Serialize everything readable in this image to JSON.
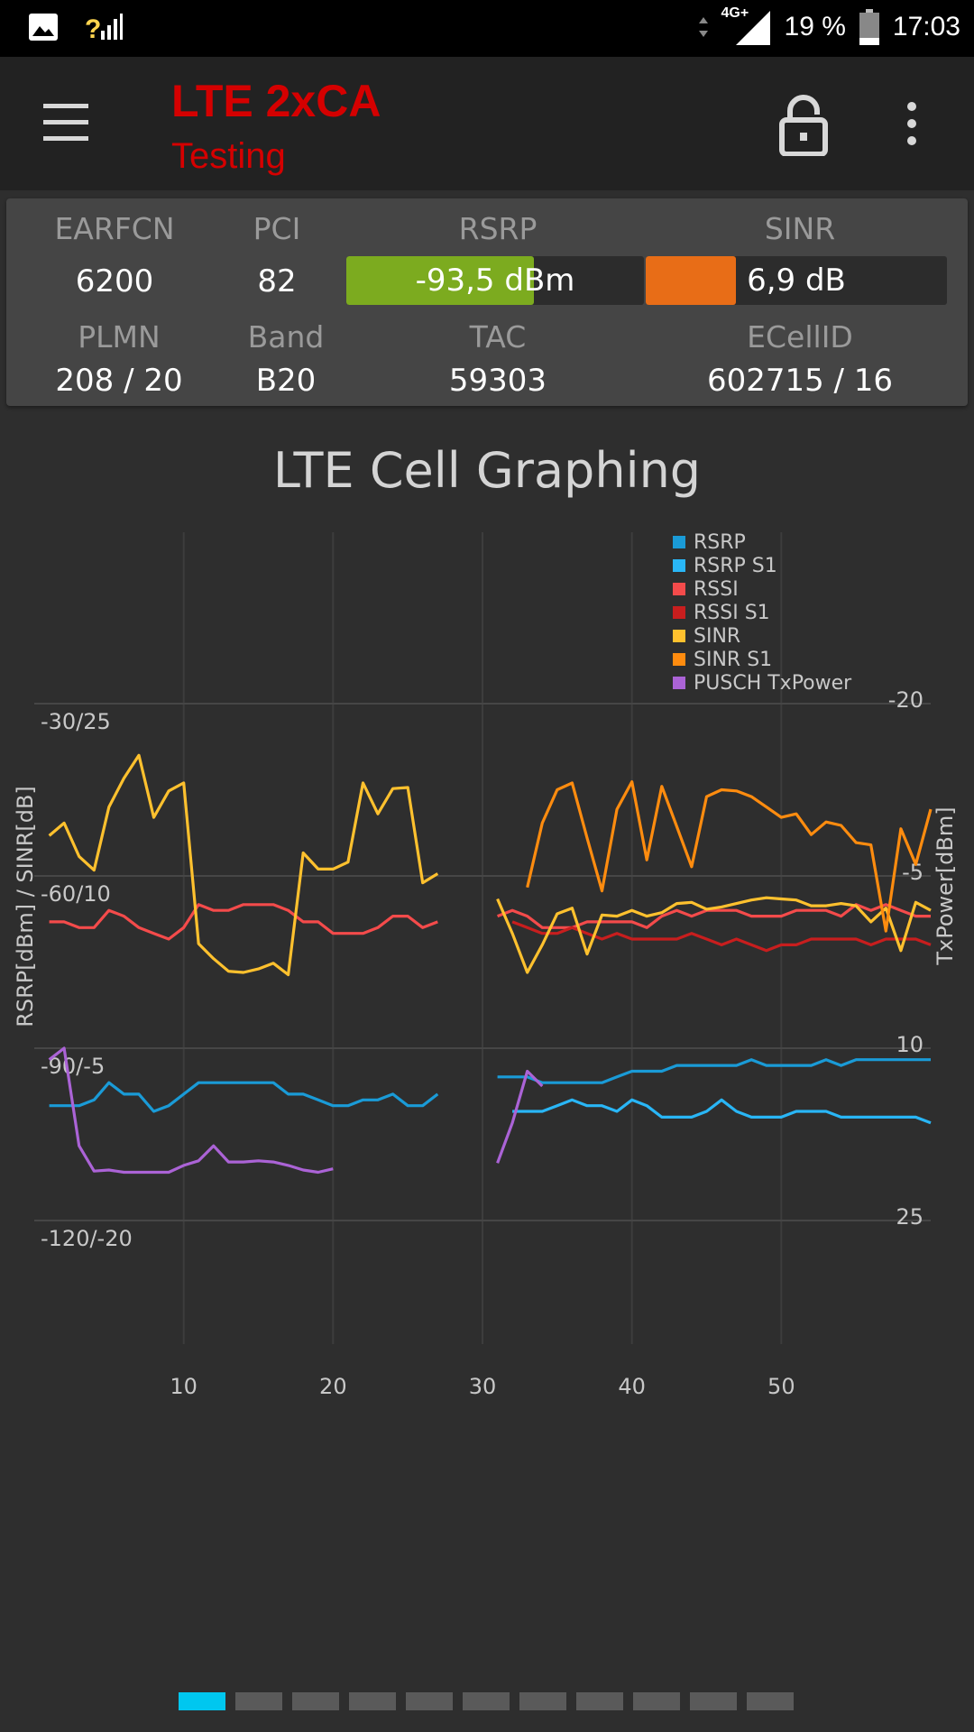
{
  "status_bar": {
    "network": "4G+",
    "battery": "19 %",
    "time": "17:03"
  },
  "app_bar": {
    "title": "LTE 2xCA",
    "subtitle": "Testing"
  },
  "cell_info": {
    "earfcn_label": "EARFCN",
    "earfcn": "6200",
    "pci_label": "PCI",
    "pci": "82",
    "rsrp_label": "RSRP",
    "rsrp": "-93,5 dBm",
    "rsrp_fill_fraction": 0.63,
    "sinr_label": "SINR",
    "sinr": "6,9 dB",
    "sinr_fill_fraction": 0.3,
    "plmn_label": "PLMN",
    "plmn": "208 / 20",
    "band_label": "Band",
    "band": "B20",
    "tac_label": "TAC",
    "tac": "59303",
    "ecellid_label": "ECellID",
    "ecellid": "602715 / 16",
    "rsrp_bar_color": "#7cab1f",
    "sinr_bar_color": "#e86d17"
  },
  "chart_data": {
    "type": "line",
    "title": "LTE Cell Graphing",
    "ylabel": "RSRP[dBm] / SINR[dB]",
    "y2label": "TxPower[dBm]",
    "ylim_rsrp": [
      -150,
      -30
    ],
    "ylim_sinr": [
      -35,
      25
    ],
    "y2lim_reversed": [
      -20,
      40
    ],
    "xlim": [
      0,
      60
    ],
    "x_ticks": [
      "10",
      "20",
      "30",
      "40",
      "50"
    ],
    "x_tick_values": [
      10,
      20,
      30,
      40,
      50
    ],
    "y_ticks": [
      "-30/25",
      "-60/10",
      "-90/-5",
      "-120/-20"
    ],
    "y_tick_rsrp_values": [
      -30,
      -60,
      -90,
      -120
    ],
    "y2_ticks": [
      "-20",
      "-5",
      "10",
      "25"
    ],
    "y2_tick_values": [
      -20,
      -5,
      10,
      25
    ],
    "grid": true,
    "legend_position": "top-right",
    "series": [
      {
        "name": "RSRP",
        "color": "#1a9bd7",
        "scale": "rsrp",
        "segments": [
          {
            "x": [
              1,
              2,
              3,
              4,
              5,
              6,
              7,
              8,
              9,
              10,
              11,
              12,
              13,
              14,
              15,
              16,
              17,
              18,
              19,
              20,
              21,
              22,
              23,
              24,
              25,
              26,
              27
            ],
            "y": [
              -100,
              -100,
              -100,
              -99,
              -96,
              -98,
              -98,
              -101,
              -100,
              -98,
              -96,
              -96,
              -96,
              -96,
              -96,
              -96,
              -98,
              -98,
              -99,
              -100,
              -100,
              -99,
              -99,
              -98,
              -100,
              -100,
              -98
            ]
          },
          {
            "x": [
              31,
              32,
              33,
              34,
              35,
              36,
              37,
              38,
              39,
              40,
              41,
              42,
              43,
              44,
              45,
              46,
              47,
              48,
              49,
              50,
              51,
              52,
              53,
              54,
              55,
              56,
              57,
              58,
              59,
              60
            ],
            "y": [
              -95,
              -95,
              -95,
              -96,
              -96,
              -96,
              -96,
              -96,
              -95,
              -94,
              -94,
              -94,
              -93,
              -93,
              -93,
              -93,
              -93,
              -92,
              -93,
              -93,
              -93,
              -93,
              -92,
              -93,
              -92,
              -92,
              -92,
              -92,
              -92,
              -92
            ]
          }
        ]
      },
      {
        "name": "RSRP S1",
        "color": "#29b6f6",
        "scale": "rsrp",
        "segments": [
          {
            "x": [
              32,
              33,
              34,
              35,
              36,
              37,
              38,
              39,
              40,
              41,
              42,
              43,
              44,
              45,
              46,
              47,
              48,
              49,
              50,
              51,
              52,
              53,
              54,
              55,
              56,
              57,
              58,
              59,
              60
            ],
            "y": [
              -101,
              -101,
              -101,
              -100,
              -99,
              -100,
              -100,
              -101,
              -99,
              -100,
              -102,
              -102,
              -102,
              -101,
              -99,
              -101,
              -102,
              -102,
              -102,
              -101,
              -101,
              -101,
              -102,
              -102,
              -102,
              -102,
              -102,
              -102,
              -103
            ]
          }
        ]
      },
      {
        "name": "RSSI",
        "color": "#f44b4b",
        "scale": "rsrp",
        "segments": [
          {
            "x": [
              1,
              2,
              3,
              4,
              5,
              6,
              7,
              8,
              9,
              10,
              11,
              12,
              13,
              14,
              15,
              16,
              17,
              18,
              19,
              20,
              21,
              22,
              23,
              24,
              25,
              26,
              27
            ],
            "y": [
              -68,
              -68,
              -69,
              -69,
              -66,
              -67,
              -69,
              -70,
              -71,
              -69,
              -65,
              -66,
              -66,
              -65,
              -65,
              -65,
              -66,
              -68,
              -68,
              -70,
              -70,
              -70,
              -69,
              -67,
              -67,
              -69,
              -68
            ]
          },
          {
            "x": [
              31,
              32,
              33,
              34,
              35,
              36,
              37,
              38,
              39,
              40,
              41,
              42,
              43,
              44,
              45,
              46,
              47,
              48,
              49,
              50,
              51,
              52,
              53,
              54,
              55,
              56,
              57,
              58,
              59,
              60
            ],
            "y": [
              -67,
              -66,
              -67,
              -69,
              -69,
              -69,
              -68,
              -68,
              -68,
              -68,
              -69,
              -67,
              -66,
              -67,
              -66,
              -66,
              -66,
              -67,
              -67,
              -67,
              -66,
              -66,
              -66,
              -67,
              -65,
              -66,
              -65,
              -66,
              -67,
              -67
            ]
          }
        ]
      },
      {
        "name": "RSSI S1",
        "color": "#c81e1e",
        "scale": "rsrp",
        "segments": [
          {
            "x": [
              32,
              33,
              34,
              35,
              36,
              37,
              38,
              39,
              40,
              41,
              42,
              43,
              44,
              45,
              46,
              47,
              48,
              49,
              50,
              51,
              52,
              53,
              54,
              55,
              56,
              57,
              58,
              59,
              60
            ],
            "y": [
              -68,
              -69,
              -70,
              -70,
              -69,
              -70,
              -71,
              -70,
              -71,
              -71,
              -71,
              -71,
              -70,
              -71,
              -72,
              -71,
              -72,
              -73,
              -72,
              -72,
              -71,
              -71,
              -71,
              -71,
              -72,
              -71,
              -71,
              -71,
              -72
            ]
          }
        ]
      },
      {
        "name": "SINR",
        "color": "#ffc12e",
        "scale": "sinr",
        "segments": [
          {
            "x": [
              1,
              2,
              3,
              4,
              5,
              6,
              7,
              8,
              9,
              10,
              11,
              12,
              13,
              14,
              15,
              16,
              17,
              18,
              19,
              20,
              21,
              22,
              23,
              24,
              25,
              26,
              27
            ],
            "y": [
              13.5,
              14.6,
              11.7,
              10.5,
              16,
              18.5,
              20.5,
              15.1,
              17.4,
              18.1,
              4.1,
              2.8,
              1.7,
              1.6,
              1.9,
              2.4,
              1.4,
              12,
              10.6,
              10.6,
              11.2,
              18.1,
              15.4,
              17.6,
              17.7,
              9.4,
              10.2
            ]
          },
          {
            "x": [
              31,
              32,
              33,
              34,
              35,
              36,
              37,
              38,
              39,
              40,
              41,
              42,
              43,
              44,
              45,
              46,
              47,
              48,
              49,
              50,
              51,
              52,
              53,
              54,
              55,
              56,
              57,
              58,
              59,
              60
            ],
            "y": [
              8,
              5,
              1.6,
              4,
              6.7,
              7.2,
              3.2,
              6.6,
              6.5,
              7,
              6.5,
              6.8,
              7.6,
              7.7,
              7.1,
              7.3,
              7.6,
              7.9,
              8.1,
              8,
              7.9,
              7.4,
              7.4,
              7.6,
              7.4,
              6,
              7.2,
              3.5,
              7.7,
              7
            ]
          }
        ]
      },
      {
        "name": "SINR S1",
        "color": "#ff8c0f",
        "scale": "sinr",
        "segments": [
          {
            "x": [
              33,
              34,
              35,
              36,
              37,
              38,
              39,
              40,
              41,
              42,
              43,
              44,
              45,
              46,
              47,
              48,
              49,
              50,
              51,
              52,
              53,
              54,
              55,
              56,
              57,
              58,
              59,
              60
            ],
            "y": [
              9,
              14.6,
              17.5,
              18.1,
              13.3,
              8.7,
              15.8,
              18.2,
              11.4,
              17.8,
              14.3,
              10.8,
              16.9,
              17.5,
              17.4,
              16.9,
              16,
              15.1,
              15.4,
              13.6,
              14.7,
              14.4,
              12.9,
              12.7,
              5.2,
              14.1,
              11,
              15.8
            ]
          }
        ]
      },
      {
        "name": "PUSCH TxPower",
        "color": "#ab63d6",
        "scale": "tx",
        "segments": [
          {
            "x": [
              1,
              2,
              3,
              4,
              5,
              6,
              7,
              8,
              9,
              10,
              11,
              12,
              13,
              14,
              15,
              16,
              17,
              18,
              19,
              20
            ],
            "y": [
              11,
              10,
              18.5,
              20.7,
              20.6,
              20.8,
              20.8,
              20.8,
              20.8,
              20.2,
              19.8,
              18.5,
              19.9,
              19.9,
              19.8,
              19.9,
              20.2,
              20.6,
              20.8,
              20.5
            ]
          },
          {
            "x": [
              31,
              32,
              33,
              34
            ],
            "y": [
              20,
              16.5,
              12,
              13.3
            ]
          }
        ]
      }
    ]
  },
  "pager": {
    "count": 11,
    "active_index": 0
  }
}
